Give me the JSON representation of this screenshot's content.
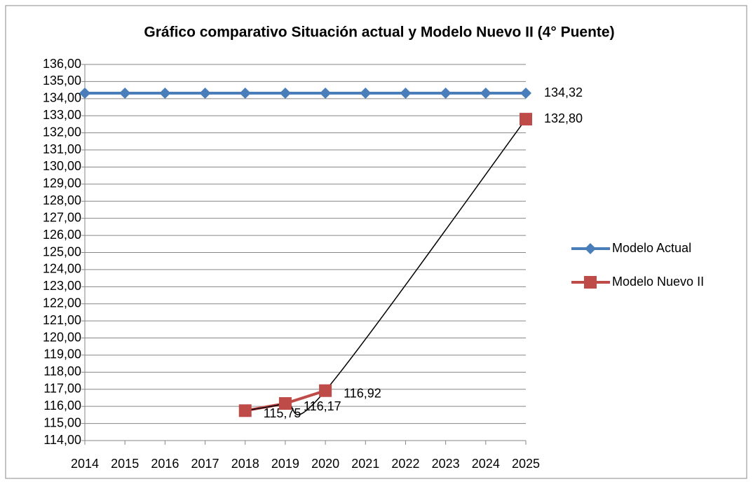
{
  "chart_data": {
    "type": "line",
    "title": "Gráfico comparativo Situación actual  y Modelo Nuevo II (4° Puente)",
    "categories": [
      "2014",
      "2015",
      "2016",
      "2017",
      "2018",
      "2019",
      "2020",
      "2021",
      "2022",
      "2023",
      "2024",
      "2025"
    ],
    "series": [
      {
        "name": "Modelo Actual",
        "color": "#4a7ebb",
        "marker": "diamond",
        "values": [
          134.32,
          134.32,
          134.32,
          134.32,
          134.32,
          134.32,
          134.32,
          134.32,
          134.32,
          134.32,
          134.32,
          134.32
        ],
        "value_labels": [
          null,
          null,
          null,
          null,
          null,
          null,
          null,
          null,
          null,
          null,
          null,
          "134,32"
        ]
      },
      {
        "name": "Modelo Nuevo II",
        "color": "#be4b48",
        "marker": "square",
        "trendline": true,
        "values": [
          null,
          null,
          null,
          null,
          115.75,
          116.17,
          116.92,
          null,
          null,
          null,
          null,
          132.8
        ],
        "value_labels": [
          null,
          null,
          null,
          null,
          "115,75",
          "116,17",
          "116,92",
          null,
          null,
          null,
          null,
          "132,80"
        ]
      }
    ],
    "ylim": [
      114,
      136
    ],
    "yticks": [
      {
        "value": 114,
        "label": "114,00"
      },
      {
        "value": 115,
        "label": "115,00"
      },
      {
        "value": 116,
        "label": "116,00"
      },
      {
        "value": 117,
        "label": "117,00"
      },
      {
        "value": 118,
        "label": "118,00"
      },
      {
        "value": 119,
        "label": "119,00"
      },
      {
        "value": 120,
        "label": "120,00"
      },
      {
        "value": 121,
        "label": "121,00"
      },
      {
        "value": 122,
        "label": "122,00"
      },
      {
        "value": 123,
        "label": "123,00"
      },
      {
        "value": 124,
        "label": "124,00"
      },
      {
        "value": 125,
        "label": "125,00"
      },
      {
        "value": 126,
        "label": "126,00"
      },
      {
        "value": 127,
        "label": "127,00"
      },
      {
        "value": 128,
        "label": "128,00"
      },
      {
        "value": 129,
        "label": "129,00"
      },
      {
        "value": 130,
        "label": "130,00"
      },
      {
        "value": 131,
        "label": "131,00"
      },
      {
        "value": 132,
        "label": "132,00"
      },
      {
        "value": 133,
        "label": "133,00"
      },
      {
        "value": 134,
        "label": "134,00"
      },
      {
        "value": 135,
        "label": "135,00"
      },
      {
        "value": 136,
        "label": "136,00"
      }
    ],
    "grid": true,
    "legend": "right"
  }
}
